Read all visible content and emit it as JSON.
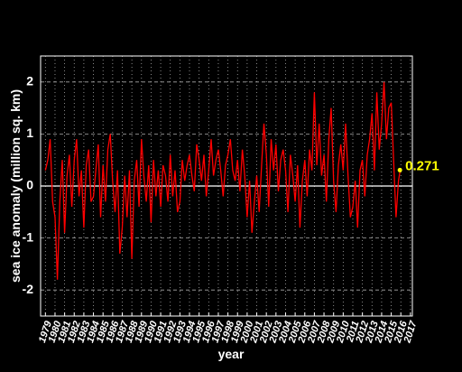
{
  "chart_data": {
    "type": "line",
    "xlabel": "year",
    "ylabel": "sea ice anomaly (million sq. km)",
    "color": "#ff0000",
    "grid": true,
    "xlim": [
      1978.5,
      2017.2
    ],
    "ylim": [
      -2.5,
      2.5
    ],
    "xticks": [
      1979,
      1980,
      1981,
      1982,
      1983,
      1984,
      1985,
      1986,
      1987,
      1988,
      1989,
      1990,
      1991,
      1992,
      1993,
      1994,
      1995,
      1996,
      1997,
      1998,
      1999,
      2000,
      2001,
      2002,
      2003,
      2004,
      2005,
      2006,
      2007,
      2008,
      2009,
      2010,
      2011,
      2012,
      2013,
      2014,
      2015,
      2016,
      2017
    ],
    "yticks": [
      -2,
      -1,
      0,
      1,
      2
    ],
    "x": [
      1979,
      1979.25,
      1979.5,
      1979.75,
      1980,
      1980.25,
      1980.5,
      1980.75,
      1981,
      1981.25,
      1981.5,
      1981.75,
      1982,
      1982.25,
      1982.5,
      1982.75,
      1983,
      1983.25,
      1983.5,
      1983.75,
      1984,
      1984.25,
      1984.5,
      1984.75,
      1985,
      1985.25,
      1985.5,
      1985.75,
      1986,
      1986.25,
      1986.5,
      1986.75,
      1987,
      1987.25,
      1987.5,
      1987.75,
      1988,
      1988.25,
      1988.5,
      1988.75,
      1989,
      1989.25,
      1989.5,
      1989.75,
      1990,
      1990.25,
      1990.5,
      1990.75,
      1991,
      1991.25,
      1991.5,
      1991.75,
      1992,
      1992.25,
      1992.5,
      1992.75,
      1993,
      1993.25,
      1993.5,
      1993.75,
      1994,
      1994.25,
      1994.5,
      1994.75,
      1995,
      1995.25,
      1995.5,
      1995.75,
      1996,
      1996.25,
      1996.5,
      1996.75,
      1997,
      1997.25,
      1997.5,
      1997.75,
      1998,
      1998.25,
      1998.5,
      1998.75,
      1999,
      1999.25,
      1999.5,
      1999.75,
      2000,
      2000.25,
      2000.5,
      2000.75,
      2001,
      2001.25,
      2001.5,
      2001.75,
      2002,
      2002.25,
      2002.5,
      2002.75,
      2003,
      2003.25,
      2003.5,
      2003.75,
      2004,
      2004.25,
      2004.5,
      2004.75,
      2005,
      2005.25,
      2005.5,
      2005.75,
      2006,
      2006.25,
      2006.5,
      2006.75,
      2007,
      2007.25,
      2007.5,
      2007.75,
      2008,
      2008.25,
      2008.5,
      2008.75,
      2009,
      2009.25,
      2009.5,
      2009.75,
      2010,
      2010.25,
      2010.5,
      2010.75,
      2011,
      2011.25,
      2011.5,
      2011.75,
      2012,
      2012.25,
      2012.5,
      2012.75,
      2013,
      2013.25,
      2013.5,
      2013.75,
      2014,
      2014.25,
      2014.5,
      2014.75,
      2015,
      2015.25,
      2015.5,
      2015.75,
      2015.9
    ],
    "values": [
      0.3,
      0.5,
      0.9,
      -0.3,
      -0.6,
      -1.8,
      -0.3,
      0.5,
      -0.9,
      0.2,
      0.6,
      -0.4,
      0.5,
      0.9,
      -0.2,
      0.3,
      -0.8,
      0.4,
      0.7,
      -0.3,
      -0.2,
      0.3,
      0.8,
      -0.6,
      0.4,
      -0.3,
      0.7,
      1.0,
      0.1,
      -0.5,
      0.3,
      -1.3,
      -0.8,
      0.2,
      -0.6,
      0.3,
      -1.4,
      0.1,
      0.5,
      -0.4,
      0.9,
      0.2,
      -0.3,
      0.4,
      -0.7,
      0.5,
      -0.2,
      0.3,
      -0.4,
      0.4,
      0.2,
      -0.3,
      0.6,
      -0.2,
      0.3,
      -0.5,
      -0.3,
      0.5,
      0.1,
      0.4,
      0.6,
      0.2,
      -0.1,
      0.8,
      0.5,
      0.1,
      0.6,
      -0.2,
      0.3,
      0.9,
      0.2,
      0.5,
      0.7,
      0.3,
      -0.2,
      0.4,
      0.6,
      0.9,
      0.3,
      0.1,
      0.5,
      -0.1,
      0.7,
      0.2,
      -0.6,
      0.1,
      -0.9,
      -0.3,
      0.2,
      -0.5,
      0.4,
      1.2,
      0.6,
      -0.4,
      0.9,
      0.3,
      0.8,
      -0.1,
      0.5,
      0.7,
      0.3,
      -0.5,
      0.6,
      0.2,
      -0.3,
      0.4,
      -0.8,
      0.1,
      0.5,
      -0.2,
      0.7,
      0.3,
      1.8,
      0.4,
      1.2,
      0.2,
      0.6,
      -0.3,
      0.9,
      1.5,
      0.1,
      -0.5,
      0.4,
      0.8,
      0.3,
      1.2,
      0.2,
      -0.6,
      -0.4,
      0.1,
      -0.8,
      0.3,
      0.5,
      -0.2,
      0.6,
      0.9,
      1.4,
      0.3,
      1.8,
      0.7,
      1.2,
      2.0,
      0.9,
      1.5,
      1.6,
      0.5,
      -0.6,
      0.1,
      0.271
    ],
    "annotation": {
      "x": 2015.9,
      "y": 0.271,
      "color": "#ffff00"
    }
  }
}
